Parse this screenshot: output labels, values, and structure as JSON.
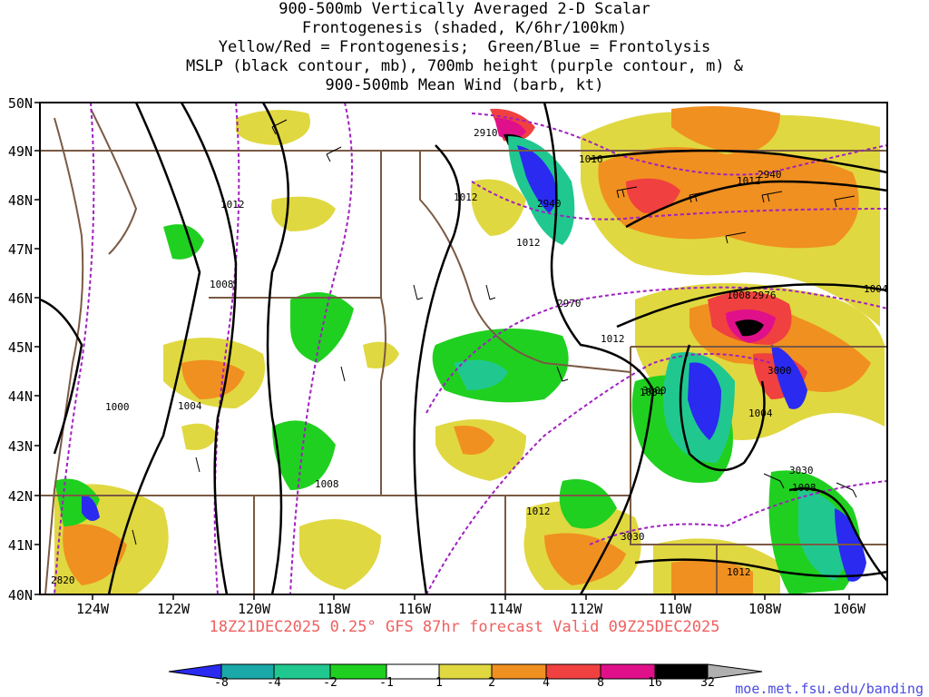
{
  "title_lines": [
    "900-500mb Vertically Averaged 2-D Scalar",
    "Frontogenesis (shaded, K/6hr/100km)",
    "Yellow/Red = Frontogenesis;  Green/Blue = Frontolysis",
    "MSLP (black contour, mb), 700mb height (purple contour, m) &",
    "900-500mb Mean Wind (barb, kt)"
  ],
  "lat_labels": [
    "50N",
    "49N",
    "48N",
    "47N",
    "46N",
    "45N",
    "44N",
    "43N",
    "42N",
    "41N",
    "40N"
  ],
  "lon_labels": [
    "124W",
    "122W",
    "120W",
    "118W",
    "116W",
    "114W",
    "112W",
    "110W",
    "108W",
    "106W"
  ],
  "valid_text": "18Z21DEC2025 0.25° GFS 87hr forecast Valid 09Z25DEC2025",
  "credit_text": "moe.met.fsu.edu/banding",
  "colorbar": {
    "labels": [
      "-8",
      "-4",
      "-2",
      "-1",
      "1",
      "2",
      "4",
      "8",
      "16",
      "32"
    ],
    "colors": [
      "#2a2af0",
      "#1aa8a8",
      "#20c890",
      "#20d020",
      "#ffffff",
      "#e0d840",
      "#f09020",
      "#f04040",
      "#e0108a",
      "#000000",
      "#b0b0b0"
    ]
  },
  "mslp_labels": [
    "1016",
    "1012",
    "1012",
    "1012",
    "1008",
    "1008",
    "1012",
    "1004",
    "1000",
    "1004",
    "1008",
    "1012",
    "1012",
    "1008",
    "1004",
    "1012",
    "1004"
  ],
  "height_labels": [
    "2910",
    "2940",
    "2940",
    "2970",
    "2976",
    "3000",
    "3000",
    "3030",
    "3030",
    "2820"
  ],
  "colors": {
    "mslp": "#000000",
    "height": "#a020c0",
    "border": "#7a5a44",
    "frontogenesis_weak": "#e0d840",
    "frontogenesis_mod": "#f09020",
    "frontogenesis_strong": "#f04040",
    "frontolysis_weak": "#20d020",
    "frontolysis_mod": "#20c890",
    "frontolysis_strong": "#2a2af0"
  }
}
